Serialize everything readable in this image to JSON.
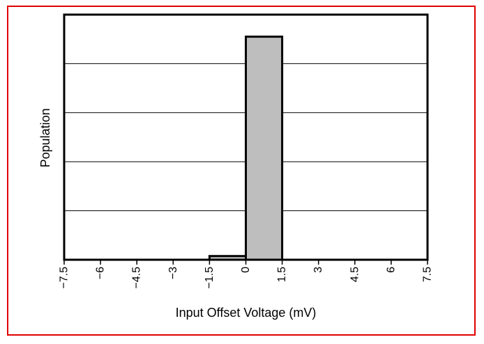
{
  "colors": {
    "frame_border": "#e00000",
    "bar_fill": "#bebebe",
    "bar_stroke": "#000000",
    "gridline": "#000000"
  },
  "chart_data": {
    "type": "bar",
    "title": "",
    "xlabel": "Input Offset Voltage (mV)",
    "ylabel": "Population",
    "xlim": [
      -7.5,
      7.5
    ],
    "ylim": [
      0,
      100
    ],
    "x_ticks": [
      "-7.5",
      "-6",
      "-4.5",
      "-3",
      "-1.5",
      "0",
      "1.5",
      "3",
      "4.5",
      "6",
      "7.5"
    ],
    "y_tick_values": [
      0,
      20,
      40,
      60,
      80,
      100
    ],
    "grid": true,
    "bins": [
      {
        "x0": -1.5,
        "x1": 0.0,
        "value": 1.5
      },
      {
        "x0": 0.0,
        "x1": 1.5,
        "value": 91
      }
    ]
  }
}
